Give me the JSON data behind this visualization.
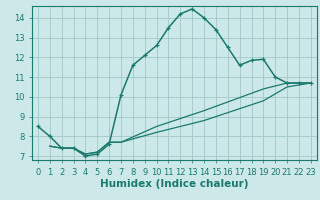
{
  "xlabel": "Humidex (Indice chaleur)",
  "ylabel": "",
  "bg_color": "#cde8e8",
  "grid_color": "#a0c8c8",
  "line_color": "#1a7a6e",
  "xlim": [
    -0.5,
    23.5
  ],
  "ylim": [
    6.8,
    14.6
  ],
  "xticks": [
    0,
    1,
    2,
    3,
    4,
    5,
    6,
    7,
    8,
    9,
    10,
    11,
    12,
    13,
    14,
    15,
    16,
    17,
    18,
    19,
    20,
    21,
    22,
    23
  ],
  "yticks": [
    7,
    8,
    9,
    10,
    11,
    12,
    13,
    14
  ],
  "curve1_x": [
    0,
    1,
    2,
    3,
    4,
    5,
    6,
    7,
    8,
    9,
    10,
    11,
    12,
    13,
    14,
    15,
    16,
    17,
    18,
    19,
    20,
    21,
    22,
    23
  ],
  "curve1_y": [
    8.5,
    8.0,
    7.4,
    7.4,
    7.0,
    7.1,
    7.6,
    10.1,
    11.6,
    12.1,
    12.6,
    13.5,
    14.2,
    14.45,
    14.0,
    13.4,
    12.5,
    11.6,
    11.85,
    11.9,
    11.0,
    10.7,
    10.7,
    10.7
  ],
  "curve2_x": [
    1,
    2,
    3,
    4,
    5,
    6,
    7,
    10,
    14,
    19,
    21,
    23
  ],
  "curve2_y": [
    7.5,
    7.4,
    7.4,
    7.1,
    7.2,
    7.7,
    7.7,
    8.5,
    9.3,
    10.4,
    10.7,
    10.7
  ],
  "curve3_x": [
    1,
    2,
    3,
    4,
    5,
    6,
    7,
    10,
    14,
    19,
    21,
    23
  ],
  "curve3_y": [
    7.5,
    7.4,
    7.4,
    7.1,
    7.2,
    7.7,
    7.7,
    8.2,
    8.8,
    9.8,
    10.5,
    10.7
  ],
  "fontsize_label": 7,
  "fontsize_tick": 6,
  "fontsize_xlabel": 7.5
}
